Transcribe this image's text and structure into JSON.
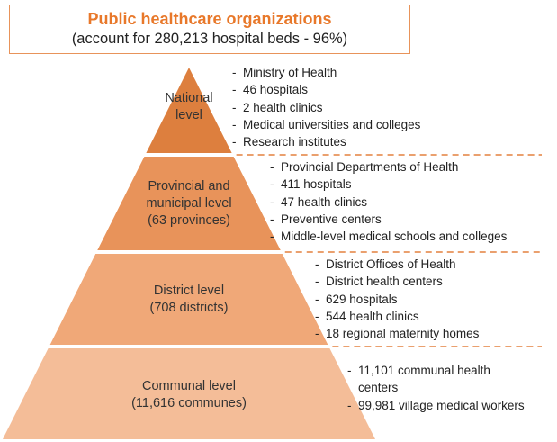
{
  "header": {
    "title": "Public healthcare organizations",
    "subtitle": "(account for 280,213 hospital beds - 96%)"
  },
  "levels": [
    {
      "label": [
        "National",
        "level"
      ],
      "items": [
        "Ministry of Health",
        "46 hospitals",
        "2 health clinics",
        "Medical universities and colleges",
        "Research institutes"
      ]
    },
    {
      "label": [
        "Provincial and",
        "municipal level",
        "(63 provinces)"
      ],
      "items": [
        "Provincial Departments of Health",
        "411 hospitals",
        "47 health clinics",
        "Preventive centers",
        "Middle-level medical schools and colleges"
      ]
    },
    {
      "label": [
        "District level",
        "(708 districts)"
      ],
      "items": [
        "District Offices of Health",
        "District health centers",
        "629 hospitals",
        "544 health clinics",
        "18 regional maternity homes"
      ]
    },
    {
      "label": [
        "Communal level",
        "(11,616 communes)"
      ],
      "items": [
        "11,101 communal health centers",
        "99,981 village medical workers"
      ]
    }
  ]
}
